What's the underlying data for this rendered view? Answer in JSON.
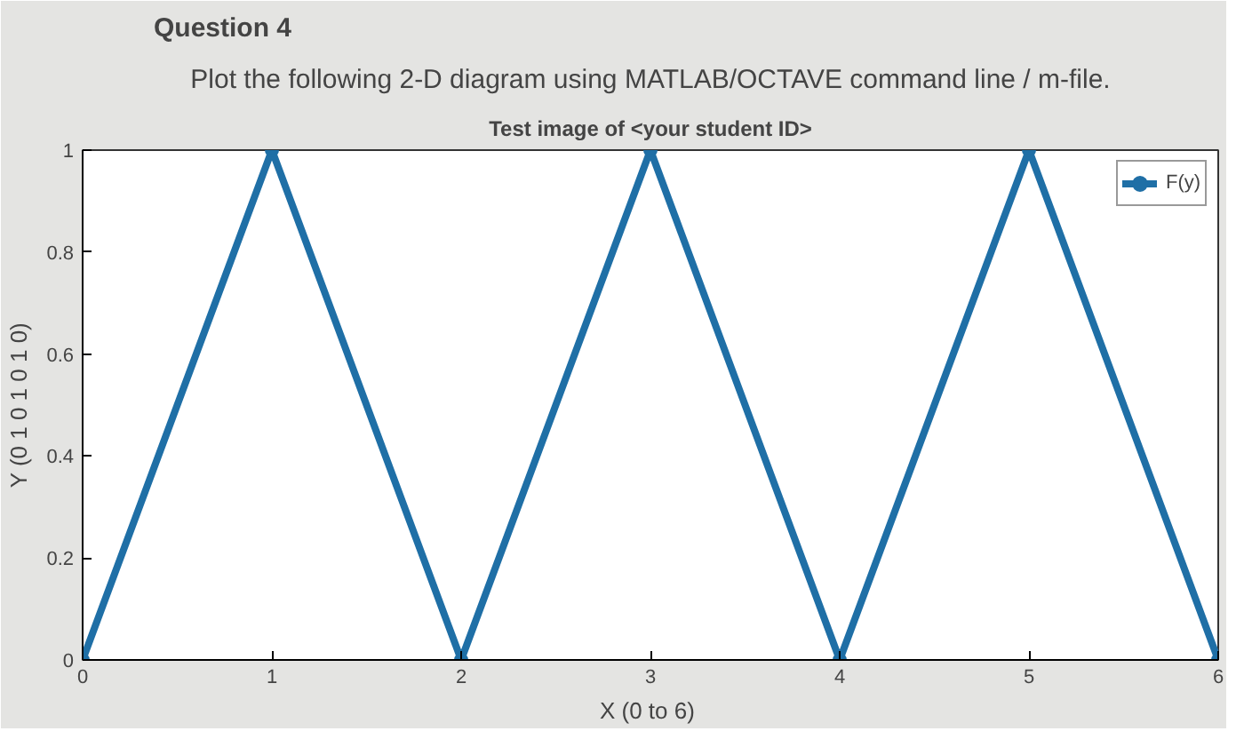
{
  "chart_data": {
    "type": "line",
    "title": "Test image of <your student ID>",
    "xlabel": "X  (0 to 6)",
    "ylabel": "Y (0 1 0 1 0 1 0)",
    "annotations": [
      "Question 4",
      "Plot the following 2-D diagram using MATLAB/OCTAVE command line / m-file."
    ],
    "x": [
      0,
      1,
      2,
      3,
      4,
      5,
      6
    ],
    "series": [
      {
        "name": "F(y)",
        "color": "#1f6fa6",
        "values": [
          0,
          1,
          0,
          1,
          0,
          1,
          0
        ]
      }
    ],
    "xlim": [
      0,
      6
    ],
    "ylim": [
      0,
      1
    ],
    "xticks": [
      0,
      1,
      2,
      3,
      4,
      5,
      6
    ],
    "yticks": [
      0,
      0.2,
      0.4,
      0.6,
      0.8,
      1
    ],
    "grid": false,
    "legend": "top right",
    "marker": "circle",
    "line_style": "solid"
  }
}
